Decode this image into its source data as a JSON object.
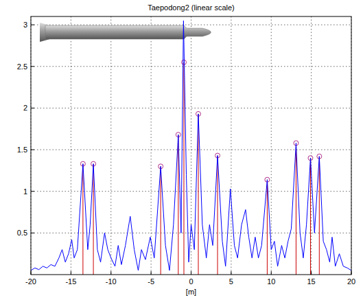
{
  "chart_data": {
    "type": "line",
    "title": "Taepodong2 (linear scale)",
    "x_label": "[m]",
    "xlim": [
      -20,
      20
    ],
    "ylim": [
      0,
      3.1
    ],
    "xticks": [
      -20,
      -15,
      -10,
      -5,
      0,
      5,
      10,
      15,
      20
    ],
    "yticks": [
      0.5,
      1,
      1.5,
      2,
      2.5,
      3
    ],
    "grid": true,
    "series": [
      {
        "type": "line",
        "color": "#0000ff",
        "x": [
          -20,
          -19.5,
          -19,
          -18.5,
          -18,
          -17.5,
          -17,
          -16.5,
          -16.1,
          -15.7,
          -15.3,
          -14.9,
          -14.6,
          -14.2,
          -13.5,
          -12.9,
          -12.6,
          -12.2,
          -11.7,
          -11.3,
          -10.8,
          -10.4,
          -10,
          -9.5,
          -9.1,
          -8.7,
          -8.2,
          -7.6,
          -7.1,
          -6.6,
          -6.2,
          -5.7,
          -5.1,
          -4.6,
          -3.8,
          -3.2,
          -2.7,
          -2.2,
          -1.6,
          -1.25,
          -0.95,
          -0.6,
          -0.3,
          0,
          0.4,
          0.9,
          1.4,
          1.9,
          2.3,
          2.7,
          3.3,
          3.9,
          4.3,
          4.9,
          5.4,
          5.8,
          6.3,
          6.8,
          7.2,
          7.6,
          8,
          8.4,
          8.8,
          9.5,
          10,
          10.4,
          10.8,
          11.3,
          11.7,
          12.1,
          12.5,
          13.1,
          13.6,
          14,
          14.4,
          14.9,
          15.4,
          16,
          16.5,
          16.9,
          17.3,
          17.6,
          18,
          18.5,
          19,
          19.5,
          20
        ],
        "values": [
          0.05,
          0.08,
          0.06,
          0.1,
          0.08,
          0.12,
          0.1,
          0.2,
          0.3,
          0.15,
          0.25,
          0.42,
          0.2,
          0.3,
          1.33,
          0.3,
          0.6,
          1.33,
          0.3,
          0.15,
          0.5,
          0.3,
          0.2,
          0.1,
          0.35,
          0.12,
          0.35,
          0.7,
          0.3,
          0.05,
          0.3,
          0.18,
          0.45,
          0.2,
          1.3,
          0.35,
          0.05,
          0.6,
          1.68,
          0.5,
          3.05,
          1.2,
          0.15,
          0.6,
          0.3,
          1.93,
          0.6,
          0.2,
          0.6,
          0.35,
          1.43,
          0.4,
          0.1,
          1.03,
          0.35,
          0.2,
          0.6,
          0.78,
          0.45,
          0.2,
          0.45,
          0.2,
          0.35,
          1.14,
          0.3,
          0.4,
          0.1,
          0.35,
          0.2,
          0.4,
          0.55,
          1.58,
          0.5,
          0.2,
          0.6,
          1.4,
          0.5,
          1.42,
          0.4,
          0.3,
          0.15,
          0.45,
          0.1,
          0.25,
          0.1,
          0.08,
          0.05
        ]
      },
      {
        "type": "stem",
        "color": "#cc0000",
        "marker": "circle",
        "x": [
          -13.5,
          -12.2,
          -3.8,
          -1.6,
          -0.9,
          0.9,
          3.3,
          9.5,
          13.1,
          14.9,
          16
        ],
        "values": [
          1.33,
          1.33,
          1.3,
          1.68,
          2.55,
          1.93,
          1.43,
          1.14,
          1.58,
          1.4,
          1.42
        ]
      }
    ]
  }
}
